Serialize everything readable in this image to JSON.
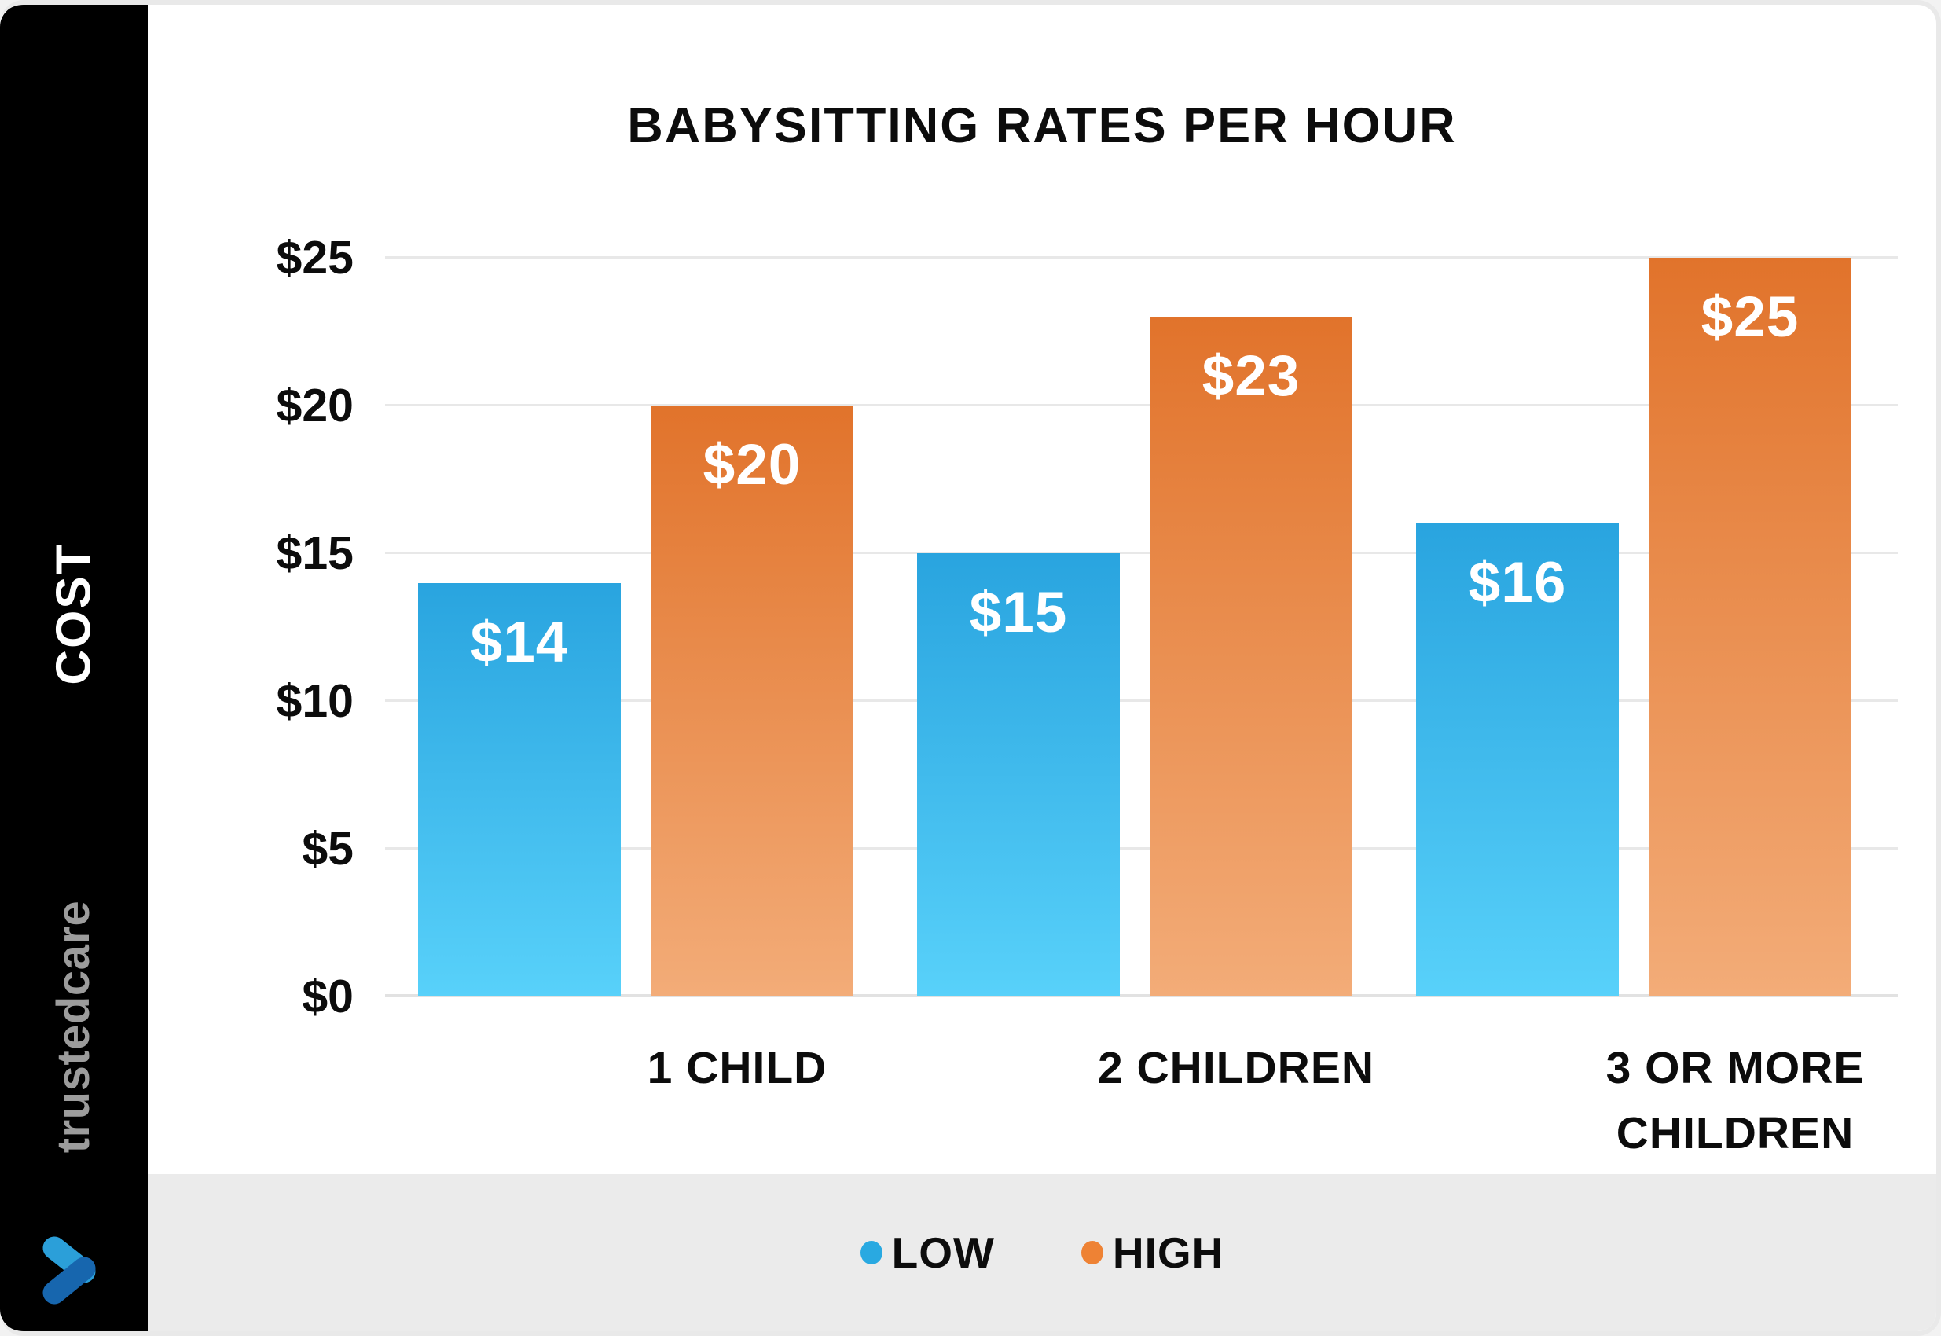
{
  "sidebar": {
    "axis_label": "COST",
    "brand_text": "trustedcare",
    "logo_icon": "heart-icon",
    "logo_colors": {
      "light_blue": "#2b9fd9",
      "dark_blue": "#1766ae"
    }
  },
  "chart_data": {
    "type": "bar",
    "title": "BABYSITTING RATES PER HOUR",
    "ylabel": "COST",
    "xlabel": "",
    "categories": [
      "1 CHILD",
      "2 CHILDREN",
      "3 OR MORE CHILDREN"
    ],
    "series": [
      {
        "name": "LOW",
        "values": [
          14,
          15,
          16
        ],
        "labels": [
          "$14",
          "$15",
          "$16"
        ],
        "color_top": "#29a4df",
        "color_bottom": "#58d1fa",
        "legend_color": "#29a9e1"
      },
      {
        "name": "HIGH",
        "values": [
          20,
          23,
          25
        ],
        "labels": [
          "$20",
          "$23",
          "$25"
        ],
        "color_top": "#e1732b",
        "color_bottom": "#f3ac78",
        "legend_color": "#ee8234"
      }
    ],
    "y_ticks": [
      {
        "label": "$0",
        "value": 0
      },
      {
        "label": "$5",
        "value": 5
      },
      {
        "label": "$10",
        "value": 10
      },
      {
        "label": "$15",
        "value": 15
      },
      {
        "label": "$20",
        "value": 20
      },
      {
        "label": "$25",
        "value": 25
      }
    ],
    "ylim": [
      0,
      25
    ],
    "grid": true,
    "legend_position": "bottom"
  },
  "legend": {
    "items": [
      {
        "label": "LOW",
        "color": "#29a9e1"
      },
      {
        "label": "HIGH",
        "color": "#ee8234"
      }
    ]
  },
  "colors": {
    "card_background": "#ffffff",
    "card_border": "#e9e9e9",
    "sidebar_background": "#000000",
    "footer_background": "#ebebeb",
    "gridline": "#e8e8e8",
    "text": "#0c0c0c",
    "brand_gray": "#9c9c9c",
    "bar_value_text": "#ffffff"
  }
}
